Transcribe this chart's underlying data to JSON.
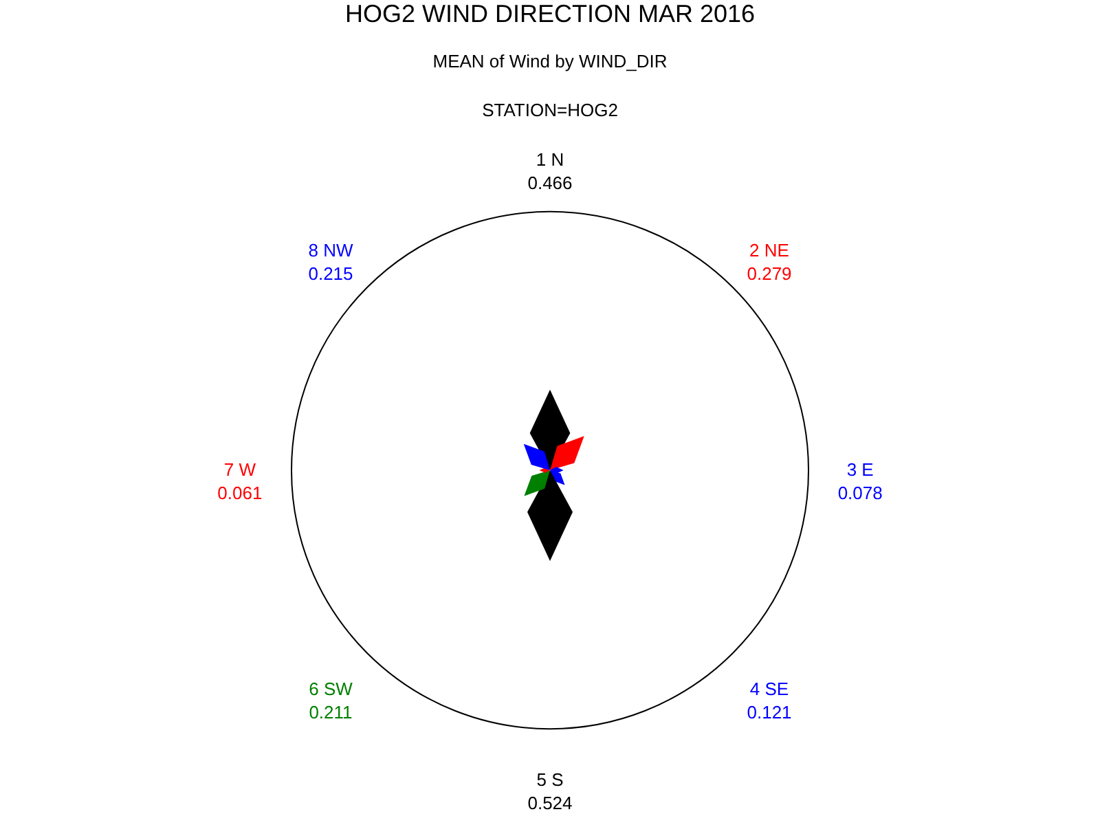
{
  "chart_data": {
    "type": "other",
    "title": "HOG2 WIND DIRECTION MAR 2016",
    "subtitle": "MEAN of Wind by WIND_DIR",
    "annotations": [
      "STATION=HOG2"
    ],
    "categories": [
      "1 N",
      "2 NE",
      "3 E",
      "4 SE",
      "5 S",
      "6 SW",
      "7 W",
      "8 NW"
    ],
    "values": [
      0.466,
      0.279,
      0.078,
      0.121,
      0.524,
      0.211,
      0.061,
      0.215
    ],
    "colors": [
      "#000000",
      "#ff0000",
      "#0000ff",
      "#0000ff",
      "#000000",
      "#008000",
      "#ff0000",
      "#0000ff"
    ],
    "data_labels": true
  }
}
